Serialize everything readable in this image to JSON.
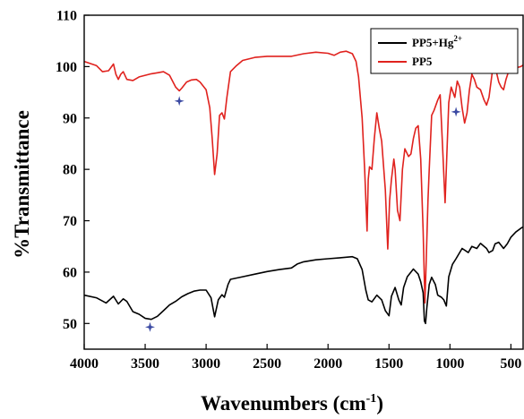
{
  "chart_data": {
    "type": "line",
    "title": "",
    "xlabel": "Wavenumbers (cm",
    "xlabel_superscript": "-1",
    "xlabel_suffix": ")",
    "ylabel": "%Transmittance",
    "xlim": [
      4000,
      400
    ],
    "ylim": [
      45,
      110
    ],
    "x_reversed": true,
    "x_ticks": [
      4000,
      3500,
      3000,
      2500,
      2000,
      1500,
      1000,
      500
    ],
    "y_ticks": [
      50,
      60,
      70,
      80,
      90,
      100,
      110
    ],
    "grid": false,
    "legend_position": "top-right",
    "series": [
      {
        "name": "PP5+Hg",
        "name_superscript": "2+",
        "color": "#000000",
        "points": [
          [
            4000,
            55.5
          ],
          [
            3900,
            55.0
          ],
          [
            3820,
            54.0
          ],
          [
            3760,
            55.3
          ],
          [
            3720,
            53.8
          ],
          [
            3680,
            54.8
          ],
          [
            3650,
            54.3
          ],
          [
            3600,
            52.3
          ],
          [
            3550,
            51.8
          ],
          [
            3500,
            51.0
          ],
          [
            3450,
            50.8
          ],
          [
            3400,
            51.4
          ],
          [
            3350,
            52.5
          ],
          [
            3300,
            53.6
          ],
          [
            3250,
            54.3
          ],
          [
            3200,
            55.2
          ],
          [
            3150,
            55.8
          ],
          [
            3100,
            56.3
          ],
          [
            3050,
            56.5
          ],
          [
            3000,
            56.5
          ],
          [
            2960,
            55.0
          ],
          [
            2930,
            51.3
          ],
          [
            2900,
            54.6
          ],
          [
            2870,
            55.6
          ],
          [
            2850,
            55.1
          ],
          [
            2820,
            57.6
          ],
          [
            2800,
            58.6
          ],
          [
            2700,
            59.1
          ],
          [
            2600,
            59.6
          ],
          [
            2500,
            60.1
          ],
          [
            2400,
            60.5
          ],
          [
            2300,
            60.8
          ],
          [
            2250,
            61.6
          ],
          [
            2200,
            62.0
          ],
          [
            2100,
            62.4
          ],
          [
            2000,
            62.6
          ],
          [
            1900,
            62.8
          ],
          [
            1800,
            63.0
          ],
          [
            1760,
            62.6
          ],
          [
            1720,
            60.5
          ],
          [
            1690,
            56.5
          ],
          [
            1670,
            54.6
          ],
          [
            1640,
            54.2
          ],
          [
            1600,
            55.5
          ],
          [
            1560,
            54.6
          ],
          [
            1530,
            52.5
          ],
          [
            1500,
            51.5
          ],
          [
            1480,
            55.3
          ],
          [
            1450,
            57.0
          ],
          [
            1420,
            54.6
          ],
          [
            1400,
            53.6
          ],
          [
            1380,
            57.0
          ],
          [
            1350,
            59.1
          ],
          [
            1300,
            60.6
          ],
          [
            1260,
            59.6
          ],
          [
            1240,
            58.1
          ],
          [
            1220,
            56.0
          ],
          [
            1210,
            50.5
          ],
          [
            1200,
            50.0
          ],
          [
            1190,
            53.0
          ],
          [
            1170,
            57.6
          ],
          [
            1150,
            59.0
          ],
          [
            1120,
            57.6
          ],
          [
            1100,
            55.5
          ],
          [
            1070,
            55.1
          ],
          [
            1050,
            54.6
          ],
          [
            1030,
            53.4
          ],
          [
            1010,
            59.1
          ],
          [
            980,
            61.5
          ],
          [
            950,
            62.6
          ],
          [
            900,
            64.6
          ],
          [
            850,
            63.8
          ],
          [
            820,
            65.0
          ],
          [
            780,
            64.6
          ],
          [
            750,
            65.6
          ],
          [
            700,
            64.6
          ],
          [
            680,
            63.8
          ],
          [
            650,
            64.2
          ],
          [
            630,
            65.5
          ],
          [
            600,
            65.8
          ],
          [
            560,
            64.6
          ],
          [
            530,
            65.5
          ],
          [
            500,
            66.8
          ],
          [
            460,
            67.8
          ],
          [
            420,
            68.5
          ],
          [
            400,
            68.8
          ]
        ]
      },
      {
        "name": "PP5",
        "color": "#e0221e",
        "points": [
          [
            4000,
            101.0
          ],
          [
            3900,
            100.2
          ],
          [
            3850,
            99.0
          ],
          [
            3800,
            99.2
          ],
          [
            3760,
            100.5
          ],
          [
            3740,
            98.5
          ],
          [
            3720,
            97.5
          ],
          [
            3700,
            98.5
          ],
          [
            3680,
            99.0
          ],
          [
            3650,
            97.5
          ],
          [
            3600,
            97.3
          ],
          [
            3550,
            98.0
          ],
          [
            3500,
            98.3
          ],
          [
            3450,
            98.6
          ],
          [
            3400,
            98.8
          ],
          [
            3350,
            99.0
          ],
          [
            3300,
            98.3
          ],
          [
            3250,
            96.0
          ],
          [
            3220,
            95.3
          ],
          [
            3200,
            95.8
          ],
          [
            3160,
            97.0
          ],
          [
            3120,
            97.4
          ],
          [
            3080,
            97.5
          ],
          [
            3050,
            97.0
          ],
          [
            3000,
            95.5
          ],
          [
            2970,
            92.0
          ],
          [
            2950,
            86.0
          ],
          [
            2930,
            79.0
          ],
          [
            2910,
            83.0
          ],
          [
            2890,
            90.5
          ],
          [
            2870,
            91.0
          ],
          [
            2850,
            89.8
          ],
          [
            2830,
            94.0
          ],
          [
            2800,
            99.0
          ],
          [
            2750,
            100.2
          ],
          [
            2700,
            101.2
          ],
          [
            2600,
            101.8
          ],
          [
            2500,
            102.0
          ],
          [
            2400,
            102.0
          ],
          [
            2300,
            102.0
          ],
          [
            2200,
            102.5
          ],
          [
            2100,
            102.8
          ],
          [
            2000,
            102.6
          ],
          [
            1950,
            102.2
          ],
          [
            1900,
            102.8
          ],
          [
            1850,
            103.0
          ],
          [
            1800,
            102.5
          ],
          [
            1770,
            101.0
          ],
          [
            1750,
            98.0
          ],
          [
            1720,
            90.0
          ],
          [
            1700,
            80.0
          ],
          [
            1680,
            68.0
          ],
          [
            1670,
            78.0
          ],
          [
            1660,
            80.5
          ],
          [
            1640,
            80.0
          ],
          [
            1620,
            86.0
          ],
          [
            1600,
            91.0
          ],
          [
            1580,
            88.0
          ],
          [
            1560,
            85.5
          ],
          [
            1530,
            76.0
          ],
          [
            1510,
            64.5
          ],
          [
            1495,
            74.0
          ],
          [
            1480,
            78.0
          ],
          [
            1460,
            82.0
          ],
          [
            1450,
            80.0
          ],
          [
            1430,
            72.0
          ],
          [
            1410,
            70.0
          ],
          [
            1390,
            80.0
          ],
          [
            1370,
            84.0
          ],
          [
            1340,
            82.5
          ],
          [
            1320,
            83.0
          ],
          [
            1300,
            86.0
          ],
          [
            1280,
            88.0
          ],
          [
            1260,
            88.5
          ],
          [
            1240,
            82.0
          ],
          [
            1220,
            68.0
          ],
          [
            1205,
            54.0
          ],
          [
            1195,
            62.0
          ],
          [
            1180,
            74.0
          ],
          [
            1170,
            80.0
          ],
          [
            1150,
            90.5
          ],
          [
            1130,
            91.5
          ],
          [
            1100,
            93.5
          ],
          [
            1080,
            94.5
          ],
          [
            1060,
            84.0
          ],
          [
            1040,
            73.5
          ],
          [
            1025,
            83.0
          ],
          [
            1010,
            93.0
          ],
          [
            990,
            96.0
          ],
          [
            960,
            94.0
          ],
          [
            940,
            97.2
          ],
          [
            920,
            96.0
          ],
          [
            900,
            92.0
          ],
          [
            880,
            89.0
          ],
          [
            860,
            91.0
          ],
          [
            840,
            95.5
          ],
          [
            820,
            98.5
          ],
          [
            800,
            97.5
          ],
          [
            780,
            96.0
          ],
          [
            750,
            95.5
          ],
          [
            720,
            93.5
          ],
          [
            700,
            92.5
          ],
          [
            680,
            94.0
          ],
          [
            650,
            99.5
          ],
          [
            620,
            99.0
          ],
          [
            600,
            97.0
          ],
          [
            580,
            96.0
          ],
          [
            560,
            95.5
          ],
          [
            540,
            97.5
          ],
          [
            520,
            99.0
          ],
          [
            490,
            99.0
          ],
          [
            450,
            99.8
          ],
          [
            420,
            100.0
          ],
          [
            400,
            100.3
          ]
        ]
      }
    ],
    "annotations": [
      {
        "type": "star",
        "x": 3220,
        "y": 93.3,
        "color": "#3b4aa3"
      },
      {
        "type": "star",
        "x": 950,
        "y": 91.2,
        "color": "#3b4aa3"
      },
      {
        "type": "star",
        "x": 3460,
        "y": 49.3,
        "color": "#3b4aa3"
      }
    ]
  }
}
